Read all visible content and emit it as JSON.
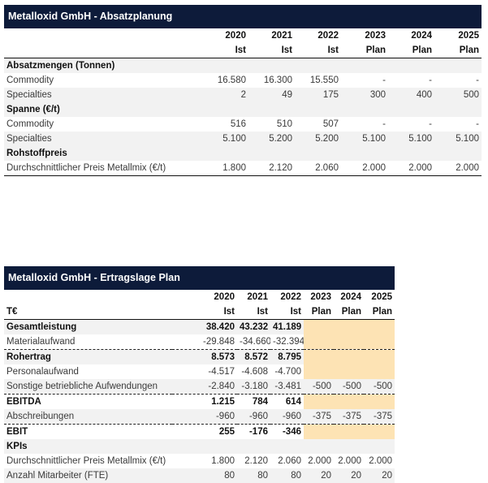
{
  "absatz": {
    "title": "Metalloxid GmbH - Absatzplanung",
    "years": [
      "2020",
      "2021",
      "2022",
      "2023",
      "2024",
      "2025"
    ],
    "types": [
      "Ist",
      "Ist",
      "Ist",
      "Plan",
      "Plan",
      "Plan"
    ],
    "sections": [
      {
        "label": "Absatzmengen (Tonnen)",
        "rows": [
          {
            "label": "Commodity",
            "values": [
              "16.580",
              "16.300",
              "15.550",
              "-",
              "-",
              "-"
            ]
          },
          {
            "label": "Specialties",
            "values": [
              "2",
              "49",
              "175",
              "300",
              "400",
              "500"
            ]
          }
        ]
      },
      {
        "label": "Spanne (€/t)",
        "rows": [
          {
            "label": "Commodity",
            "values": [
              "516",
              "510",
              "507",
              "-",
              "-",
              "-"
            ]
          },
          {
            "label": "Specialties",
            "values": [
              "5.100",
              "5.200",
              "5.200",
              "5.100",
              "5.100",
              "5.100"
            ]
          }
        ]
      },
      {
        "label": "Rohstoffpreis",
        "rows": [
          {
            "label": "Durchschnittlicher Preis Metallmix (€/t)",
            "values": [
              "1.800",
              "2.120",
              "2.060",
              "2.000",
              "2.000",
              "2.000"
            ]
          }
        ]
      }
    ]
  },
  "ertrag": {
    "title": "Metalloxid GmbH - Ertragslage Plan",
    "unit": "T€",
    "years": [
      "2020",
      "2021",
      "2022",
      "2023",
      "2024",
      "2025"
    ],
    "types": [
      "Ist",
      "Ist",
      "Ist",
      "Plan",
      "Plan",
      "Plan"
    ],
    "rows": [
      {
        "label": "Gesamtleistung",
        "values": [
          "38.420",
          "43.232",
          "41.189",
          "",
          "",
          ""
        ]
      },
      {
        "label": "Materialaufwand",
        "values": [
          "-29.848",
          "-34.660",
          "-32.394",
          "",
          "",
          ""
        ]
      },
      {
        "label": "Rohertrag",
        "values": [
          "8.573",
          "8.572",
          "8.795",
          "",
          "",
          ""
        ]
      },
      {
        "label": "Personalaufwand",
        "values": [
          "-4.517",
          "-4.608",
          "-4.700",
          "",
          "",
          ""
        ]
      },
      {
        "label": "Sonstige betriebliche Aufwendungen",
        "values": [
          "-2.840",
          "-3.180",
          "-3.481",
          "-500",
          "-500",
          "-500"
        ]
      },
      {
        "label": "EBITDA",
        "values": [
          "1.215",
          "784",
          "614",
          "",
          "",
          ""
        ]
      },
      {
        "label": "Abschreibungen",
        "values": [
          "-960",
          "-960",
          "-960",
          "-375",
          "-375",
          "-375"
        ]
      },
      {
        "label": "EBIT",
        "values": [
          "255",
          "-176",
          "-346",
          "",
          "",
          ""
        ]
      },
      {
        "label": "KPIs",
        "values": [
          "",
          "",
          "",
          "",
          "",
          ""
        ]
      },
      {
        "label": "Durchschnittlicher Preis Metallmix (€/t)",
        "values": [
          "1.800",
          "2.120",
          "2.060",
          "2.000",
          "2.000",
          "2.000"
        ]
      },
      {
        "label": "Anzahl Mitarbeiter (FTE)",
        "values": [
          "80",
          "80",
          "80",
          "20",
          "20",
          "20"
        ]
      }
    ]
  },
  "colors": {
    "header_bg": "#0d1b3a",
    "header_text": "#ffffff",
    "plan_fill": "#fde3b4",
    "row_shade": "#f2f2f2"
  }
}
